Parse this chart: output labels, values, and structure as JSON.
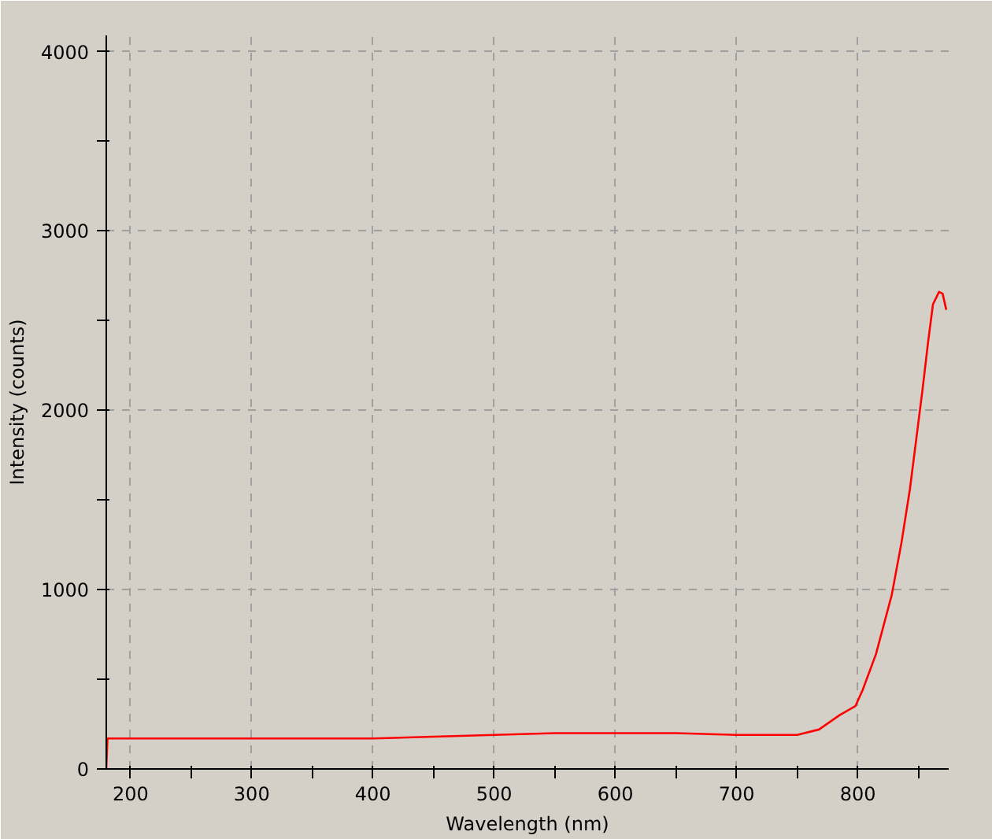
{
  "chart_data": {
    "type": "line",
    "xlabel": "Wavelength (nm)",
    "ylabel": "Intensity (counts)",
    "x": [
      180,
      181,
      200,
      250,
      300,
      350,
      400,
      450,
      500,
      550,
      600,
      650,
      700,
      735,
      750,
      768,
      785,
      798,
      804,
      815,
      828,
      836,
      843,
      849,
      853.5,
      858,
      862,
      867,
      870,
      873
    ],
    "series": [
      {
        "color": "#ff0000",
        "values": [
          0,
          170,
          170,
          170,
          170,
          170,
          170,
          180,
          190,
          200,
          200,
          200,
          190,
          190,
          190,
          220,
          300,
          350,
          440,
          640,
          970,
          1260,
          1560,
          1880,
          2120,
          2380,
          2590,
          2660,
          2650,
          2560
        ]
      }
    ],
    "xlim": [
      180,
      875
    ],
    "ylim": [
      0,
      4090
    ],
    "xticks": [
      200,
      {
        "value": 250,
        "label": null
      },
      300,
      {
        "value": 350,
        "label": null
      },
      400,
      {
        "value": 450,
        "label": null
      },
      500,
      {
        "value": 550,
        "label": null
      },
      600,
      {
        "value": 650,
        "label": null
      },
      700,
      {
        "value": 750,
        "label": null
      },
      800,
      {
        "value": 850,
        "label": null
      }
    ],
    "yticks": [
      0,
      {
        "value": 500,
        "label": null
      },
      1000,
      {
        "value": 1500,
        "label": null
      },
      2000,
      {
        "value": 2500,
        "label": null
      },
      3000,
      {
        "value": 3500,
        "label": null
      },
      4000
    ],
    "grid": true,
    "marker": "none",
    "line_style": "solid"
  }
}
